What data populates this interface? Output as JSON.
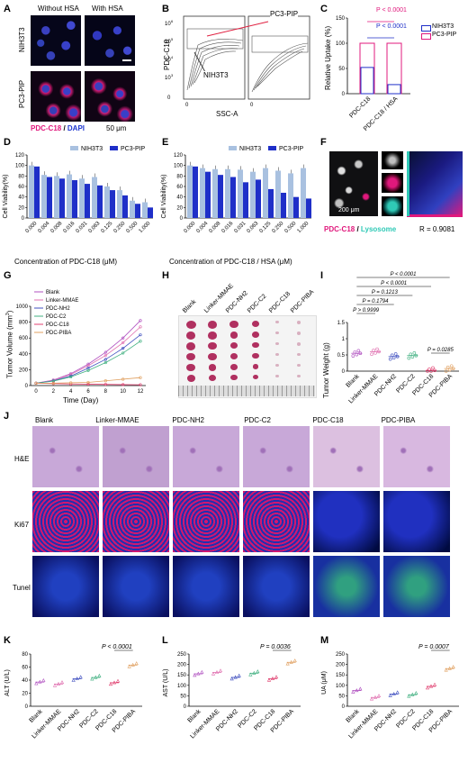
{
  "panels": {
    "A": {
      "label": "A",
      "col_without": "Without HSA",
      "col_with": "With HSA",
      "row1": "NIH3T3",
      "row2": "PC3-PIP",
      "legend_pdc": "PDC-C18",
      "legend_sep": " / ",
      "legend_dapi": "DAPI",
      "scale": "50 μm"
    },
    "B": {
      "label": "B",
      "ylabel": "PDC-C18",
      "xlabel": "SSC-A",
      "cell1": "NIH3T3",
      "cell2": "PC3-PIP",
      "ticks": [
        "0",
        "10",
        "10",
        "10",
        "10"
      ],
      "exps": [
        "3",
        "4",
        "5",
        "6"
      ]
    },
    "C": {
      "label": "C",
      "ylabel": "Relative Uptake (%)",
      "p1": "P < 0.0001",
      "p2": "P < 0.0001",
      "legend": [
        "NIH3T3",
        "PC3-PIP"
      ],
      "categories": [
        "PDC-C18",
        "PDC-C18 / HSA"
      ]
    },
    "D": {
      "label": "D",
      "xlabel": "Concentration of PDC-C18 (μM)"
    },
    "E": {
      "label": "E",
      "xlabel": "Concentration of PDC-C18 / HSA (μM)"
    },
    "F": {
      "label": "F",
      "legend_pdc": "PDC-C18",
      "legend_sep": " / ",
      "legend_lyso": "Lysosome",
      "r_value": "R = 0.9081",
      "scale": "200 μm"
    },
    "G": {
      "label": "G",
      "xlabel": "Time (Day)",
      "ylabel_pre": "Tumor Volume (mm",
      "ylabel_sup": "3",
      "ylabel_post": ")"
    },
    "H": {
      "label": "H",
      "groups": [
        "Blank",
        "Linker-MMAE",
        "PDC-NH2",
        "PDC-C2",
        "PDC-C18",
        "PDC-PIBA"
      ]
    },
    "I": {
      "label": "I",
      "ylabel": "Tumor Weight (g)",
      "pvalues": [
        "P < 0.0001",
        "P < 0.0001",
        "P = 0.1213",
        "P = 0.1794",
        "P > 0.9999",
        "P = 0.0285"
      ]
    },
    "J": {
      "label": "J",
      "groups": [
        "Blank",
        "Linker-MMAE",
        "PDC-NH2",
        "PDC-C2",
        "PDC-C18",
        "PDC-PIBA"
      ],
      "rows": [
        "H&E",
        "Ki67",
        "Tunel"
      ],
      "scale": "100 μm"
    },
    "K": {
      "label": "K",
      "ylabel": "ALT (U/L)",
      "p": "P < 0.0001"
    },
    "L": {
      "label": "L",
      "ylabel": "AST (U/L)",
      "p": "P = 0.0036"
    },
    "M": {
      "label": "M",
      "ylabel": "UA (μM)",
      "p": "P = 0.0007"
    }
  },
  "colors": {
    "nih3t3": "#a9c1e0",
    "pc3pip": "#1f2fc8",
    "pdc": "#e0187c",
    "dapi": "#1d36d0",
    "lyso": "#2fc9b6"
  },
  "chart_data": [
    {
      "id": "C",
      "type": "bar",
      "categories": [
        "PDC-C18",
        "PDC-C18 / HSA"
      ],
      "series": [
        {
          "name": "NIH3T3",
          "values": [
            52,
            18
          ]
        },
        {
          "name": "PC3-PIP",
          "values": [
            100,
            100
          ]
        }
      ],
      "ylabel": "Relative Uptake (%)",
      "ylim": [
        0,
        150
      ],
      "yticks": [
        0,
        50,
        100,
        150
      ]
    },
    {
      "id": "D",
      "type": "bar",
      "categories": [
        "0.000",
        "0.004",
        "0.008",
        "0.016",
        "0.031",
        "0.063",
        "0.125",
        "0.250",
        "0.500",
        "1.000"
      ],
      "series": [
        {
          "name": "NIH3T3",
          "values": [
            100,
            82,
            80,
            83,
            75,
            78,
            60,
            53,
            33,
            30
          ]
        },
        {
          "name": "PC3-PIP",
          "values": [
            98,
            78,
            75,
            72,
            65,
            62,
            53,
            43,
            27,
            20
          ]
        }
      ],
      "xlabel": "Concentration of PDC-C18 (μM)",
      "ylabel": "Cell Viability(%)",
      "ylim": [
        0,
        120
      ],
      "yticks": [
        0,
        20,
        40,
        60,
        80,
        100,
        120
      ]
    },
    {
      "id": "E",
      "type": "bar",
      "categories": [
        "0.000",
        "0.004",
        "0.008",
        "0.016",
        "0.031",
        "0.063",
        "0.125",
        "0.250",
        "0.500",
        "1.000"
      ],
      "series": [
        {
          "name": "NIH3T3",
          "values": [
            100,
            95,
            93,
            93,
            92,
            88,
            95,
            90,
            85,
            95
          ]
        },
        {
          "name": "PC3-PIP",
          "values": [
            98,
            88,
            82,
            78,
            68,
            73,
            55,
            48,
            40,
            37
          ]
        }
      ],
      "xlabel": "Concentration of PDC-C18 / HSA (μM)",
      "ylabel": "Cell Viability(%)",
      "ylim": [
        0,
        120
      ],
      "yticks": [
        0,
        20,
        40,
        60,
        80,
        100,
        120
      ]
    },
    {
      "id": "G",
      "type": "line",
      "x": [
        0,
        2,
        4,
        6,
        8,
        10,
        12
      ],
      "series": [
        {
          "name": "Blank",
          "values": [
            30,
            70,
            150,
            270,
            420,
            600,
            820
          ]
        },
        {
          "name": "Linker-MMAE",
          "values": [
            30,
            65,
            140,
            250,
            380,
            540,
            740
          ]
        },
        {
          "name": "PDC-NH2",
          "values": [
            30,
            60,
            120,
            220,
            330,
            470,
            640
          ]
        },
        {
          "name": "PDC-C2",
          "values": [
            30,
            55,
            110,
            190,
            290,
            410,
            560
          ]
        },
        {
          "name": "PDC-C18",
          "values": [
            30,
            25,
            20,
            18,
            15,
            12,
            10
          ]
        },
        {
          "name": "PDC-PIBA",
          "values": [
            30,
            30,
            35,
            40,
            60,
            80,
            100
          ]
        }
      ],
      "xlabel": "Time (Day)",
      "ylim": [
        0,
        1000
      ],
      "yticks": [
        0,
        200,
        400,
        600,
        800,
        1000
      ],
      "xticks": [
        0,
        2,
        4,
        6,
        8,
        10,
        12
      ]
    },
    {
      "id": "I",
      "type": "scatter",
      "categories": [
        "Blank",
        "Linker-MMAE",
        "PDC-NH2",
        "PDC-C2",
        "PDC-C18",
        "PDC-PIBA"
      ],
      "values": [
        0.55,
        0.6,
        0.45,
        0.48,
        0.02,
        0.08
      ],
      "ylabel": "Tumor Weight (g)",
      "ylim": [
        0,
        1.5
      ],
      "yticks": [
        0.0,
        0.5,
        1.0,
        1.5
      ]
    },
    {
      "id": "K",
      "type": "scatter",
      "categories": [
        "Blank",
        "Linker-MMAE",
        "PDC-NH2",
        "PDC-C2",
        "PDC-C18",
        "PDC-PIBA"
      ],
      "values": [
        37,
        34,
        42,
        44,
        36,
        63
      ],
      "ylabel": "ALT (U/L)",
      "ylim": [
        0,
        80
      ],
      "yticks": [
        0,
        20,
        40,
        60,
        80
      ]
    },
    {
      "id": "L",
      "type": "scatter",
      "categories": [
        "Blank",
        "Linker-MMAE",
        "PDC-NH2",
        "PDC-C2",
        "PDC-C18",
        "PDC-PIBA"
      ],
      "values": [
        155,
        162,
        138,
        158,
        132,
        210
      ],
      "ylabel": "AST (U/L)",
      "ylim": [
        0,
        250
      ],
      "yticks": [
        0,
        50,
        100,
        150,
        200,
        250
      ]
    },
    {
      "id": "M",
      "type": "scatter",
      "categories": [
        "Blank",
        "Linker-MMAE",
        "PDC-NH2",
        "PDC-C2",
        "PDC-C18",
        "PDC-PIBA"
      ],
      "values": [
        75,
        42,
        58,
        55,
        95,
        180
      ],
      "ylabel": "UA (μM)",
      "ylim": [
        0,
        250
      ],
      "yticks": [
        0,
        50,
        100,
        150,
        200,
        250
      ]
    }
  ]
}
